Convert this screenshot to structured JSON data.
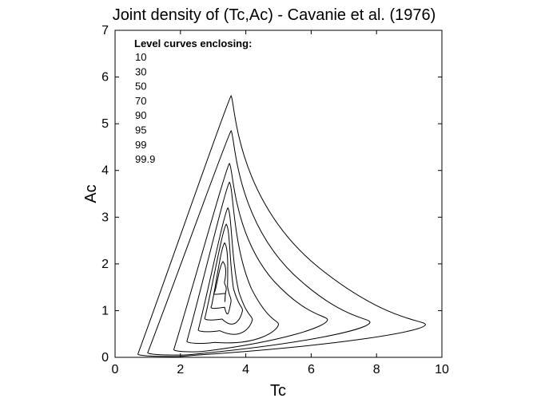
{
  "chart_data": {
    "type": "contour",
    "title": "Joint density of (Tc,Ac) - Cavanie et al. (1976)",
    "xlabel": "Tc",
    "ylabel": "Ac",
    "xlim": [
      0,
      10
    ],
    "ylim": [
      0,
      7
    ],
    "xticks": [
      0,
      2,
      4,
      6,
      8,
      10
    ],
    "yticks": [
      0,
      1,
      2,
      3,
      4,
      5,
      6,
      7
    ],
    "grid": false,
    "legend": {
      "heading": "Level curves enclosing:",
      "items": [
        "10",
        "30",
        "50",
        "70",
        "90",
        "95",
        "99",
        "99.9"
      ],
      "placement": "top-left"
    },
    "contours": [
      {
        "level": "10",
        "peak": [
          3.3,
          2.05
        ],
        "xmin": 3.05,
        "xmax": 3.5,
        "ymin": 1.35,
        "tail": [
          3.4,
          1.45
        ]
      },
      {
        "level": "30",
        "peak": [
          3.35,
          2.45
        ],
        "xmin": 2.95,
        "xmax": 3.65,
        "ymin": 1.05,
        "tail": [
          3.55,
          1.2
        ]
      },
      {
        "level": "50",
        "peak": [
          3.4,
          2.85
        ],
        "xmin": 2.75,
        "xmax": 3.8,
        "ymin": 0.8,
        "tail": [
          3.9,
          1.0
        ]
      },
      {
        "level": "70",
        "peak": [
          3.45,
          3.2
        ],
        "xmin": 2.55,
        "xmax": 4.2,
        "ymin": 0.55,
        "tail": [
          4.2,
          0.8
        ]
      },
      {
        "level": "90",
        "peak": [
          3.5,
          3.75
        ],
        "xmin": 2.2,
        "xmax": 5.0,
        "ymin": 0.3,
        "tail": [
          5.0,
          0.7
        ]
      },
      {
        "level": "95",
        "peak": [
          3.5,
          4.15
        ],
        "xmin": 1.8,
        "xmax": 6.5,
        "ymin": 0.12,
        "tail": [
          6.5,
          0.8
        ]
      },
      {
        "level": "99",
        "peak": [
          3.55,
          4.85
        ],
        "xmin": 1.0,
        "xmax": 7.8,
        "ymin": 0.05,
        "tail": [
          7.8,
          0.75
        ]
      },
      {
        "level": "99.9",
        "peak": [
          3.55,
          5.6
        ],
        "xmin": 0.7,
        "xmax": 9.5,
        "ymin": 0.02,
        "tail": [
          9.5,
          0.7
        ]
      }
    ]
  }
}
